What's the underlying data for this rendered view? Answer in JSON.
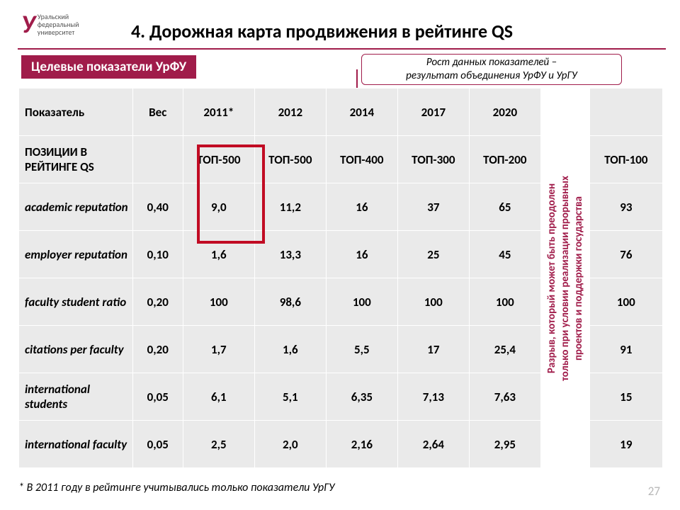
{
  "logo": {
    "mark": "У",
    "text_line1": "Уральский",
    "text_line2": "федеральный",
    "text_line3": "университет"
  },
  "title": "4.  Дорожная карта продвижения в рейтинге QS",
  "subtitle": "Целевые показатели УрФУ",
  "annotation": {
    "line1": "Рост данных показателей –",
    "line2": "результат объединения УрФУ и УрГУ"
  },
  "gap_text": "Разрыв, который может быть преодолен только при условии реализации прорывных проектов и поддержки государства",
  "table": {
    "headers": [
      "Показатель",
      "Вес",
      "2011*",
      "2012",
      "2014",
      "2017",
      "2020"
    ],
    "last_header": "",
    "positions_label": "ПОЗИЦИИ В РЕЙТИНГЕ QS",
    "positions": [
      "ТОП-500",
      "ТОП-500",
      "ТОП-400",
      "ТОП-300",
      "ТОП-200"
    ],
    "positions_last": "ТОП-100",
    "rows": [
      {
        "label": "academic reputation",
        "weight": "0,40",
        "vals": [
          "9,0",
          "11,2",
          "16",
          "37",
          "65"
        ],
        "last": "93"
      },
      {
        "label": "employer reputation",
        "weight": "0,10",
        "vals": [
          "1,6",
          "13,3",
          "16",
          "25",
          "45"
        ],
        "last": "76"
      },
      {
        "label": "faculty student ratio",
        "weight": "0,20",
        "vals": [
          "100",
          "98,6",
          "100",
          "100",
          "100"
        ],
        "last": "100"
      },
      {
        "label": "citations per faculty",
        "weight": "0,20",
        "vals": [
          "1,7",
          "1,6",
          "5,5",
          "17",
          "25,4"
        ],
        "last": "91"
      },
      {
        "label": "international students",
        "weight": "0,05",
        "vals": [
          "6,1",
          "5,1",
          "6,35",
          "7,13",
          "7,63"
        ],
        "last": "15"
      },
      {
        "label": "international faculty",
        "weight": "0,05",
        "vals": [
          "2,5",
          "2,0",
          "2,16",
          "2,64",
          "2,95"
        ],
        "last": "19"
      }
    ]
  },
  "footnote": "* В 2011 году в рейтинге учитывались только показатели УрГУ",
  "page_num": "27",
  "colors": {
    "brand": "#a01c4a",
    "highlight": "#c10b23",
    "cell_bg": "#eaeaea",
    "page_num": "#b8b8b8"
  }
}
